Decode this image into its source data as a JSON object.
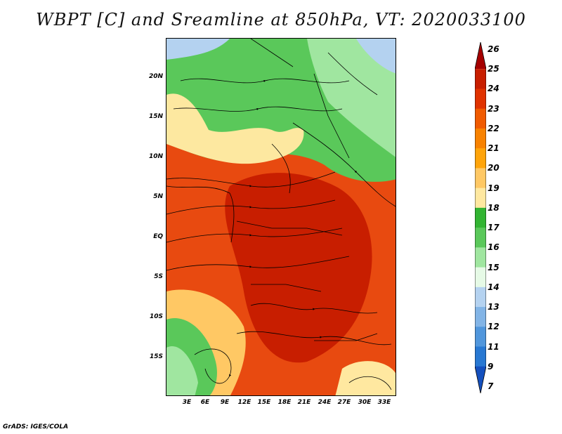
{
  "title": "WBPT [C] and Sreamline at 850hPa, VT: 2020033100",
  "footer": "GrADS: IGES/COLA",
  "map": {
    "lat_labels": [
      "20N",
      "15N",
      "10N",
      "5N",
      "EQ",
      "5S",
      "10S",
      "15S"
    ],
    "lon_labels": [
      "3E",
      "6E",
      "9E",
      "12E",
      "15E",
      "18E",
      "21E",
      "24E",
      "27E",
      "30E",
      "33E"
    ]
  },
  "colorbar": {
    "labels": [
      "26",
      "25",
      "24",
      "23",
      "22",
      "21",
      "20",
      "19",
      "18",
      "17",
      "16",
      "15",
      "14",
      "13",
      "12",
      "11",
      "9",
      "7"
    ],
    "colors": [
      "#a50000",
      "#c81e00",
      "#e03200",
      "#f05a00",
      "#f88200",
      "#ffa40a",
      "#ffc864",
      "#ffe8a0",
      "#32b432",
      "#5ac85a",
      "#a0e6a0",
      "#e6fae6",
      "#b4d2f0",
      "#82b4e6",
      "#5096dc",
      "#2878d2",
      "#1450be"
    ]
  },
  "colors": {
    "warm_max": "#c81e00",
    "warm": "#e84a10",
    "mid": "#fde8a0",
    "cool_green": "#5ac85a",
    "cool_light": "#a0e6a0",
    "cool_blue": "#b4d2f0"
  }
}
